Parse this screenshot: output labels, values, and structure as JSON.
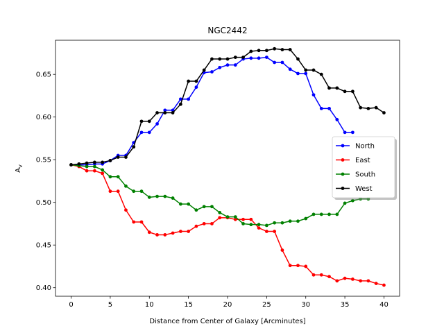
{
  "chart_data": {
    "type": "line",
    "title": "NGC2442",
    "xlabel": "Distance from Center of Galaxy [Arcminutes]",
    "ylabel": "A",
    "ylabel_sub": "V",
    "xlim": [
      -2,
      42
    ],
    "ylim": [
      0.39,
      0.69
    ],
    "xticks": [
      0,
      5,
      10,
      15,
      20,
      25,
      30,
      35,
      40
    ],
    "yticks": [
      0.4,
      0.45,
      0.5,
      0.55,
      0.6,
      0.65
    ],
    "legend_position": "center-right",
    "series": [
      {
        "name": "North",
        "color": "#0000ff",
        "x": [
          0,
          1,
          2,
          3,
          4,
          5,
          6,
          7,
          8,
          9,
          10,
          11,
          12,
          13,
          14,
          15,
          16,
          17,
          18,
          19,
          20,
          21,
          22,
          23,
          24,
          25,
          26,
          27,
          28,
          29,
          30,
          31,
          32,
          33,
          34,
          35,
          36
        ],
        "y": [
          0.544,
          0.544,
          0.544,
          0.545,
          0.545,
          0.549,
          0.555,
          0.555,
          0.57,
          0.582,
          0.582,
          0.592,
          0.608,
          0.608,
          0.621,
          0.621,
          0.635,
          0.652,
          0.653,
          0.658,
          0.661,
          0.661,
          0.668,
          0.669,
          0.669,
          0.67,
          0.664,
          0.664,
          0.656,
          0.651,
          0.651,
          0.626,
          0.61,
          0.61,
          0.597,
          0.582,
          0.582
        ]
      },
      {
        "name": "East",
        "color": "#ff0000",
        "x": [
          0,
          1,
          2,
          3,
          4,
          5,
          6,
          7,
          8,
          9,
          10,
          11,
          12,
          13,
          14,
          15,
          16,
          17,
          18,
          19,
          20,
          21,
          22,
          23,
          24,
          25,
          26,
          27,
          28,
          29,
          30,
          31,
          32,
          33,
          34,
          35,
          36,
          37,
          38,
          39,
          40
        ],
        "y": [
          0.544,
          0.542,
          0.537,
          0.537,
          0.534,
          0.513,
          0.513,
          0.491,
          0.477,
          0.477,
          0.465,
          0.462,
          0.462,
          0.464,
          0.466,
          0.466,
          0.472,
          0.475,
          0.475,
          0.482,
          0.482,
          0.48,
          0.48,
          0.48,
          0.47,
          0.466,
          0.466,
          0.444,
          0.426,
          0.426,
          0.425,
          0.415,
          0.415,
          0.413,
          0.408,
          0.411,
          0.41,
          0.408,
          0.408,
          0.405,
          0.403
        ]
      },
      {
        "name": "South",
        "color": "#008000",
        "x": [
          0,
          1,
          2,
          3,
          4,
          5,
          6,
          7,
          8,
          9,
          10,
          11,
          12,
          13,
          14,
          15,
          16,
          17,
          18,
          19,
          20,
          21,
          22,
          23,
          24,
          25,
          26,
          27,
          28,
          29,
          30,
          31,
          32,
          33,
          34,
          35,
          36,
          37,
          38
        ],
        "y": [
          0.544,
          0.543,
          0.542,
          0.542,
          0.538,
          0.53,
          0.53,
          0.519,
          0.513,
          0.513,
          0.506,
          0.507,
          0.507,
          0.505,
          0.498,
          0.498,
          0.491,
          0.495,
          0.495,
          0.488,
          0.483,
          0.483,
          0.475,
          0.474,
          0.474,
          0.473,
          0.476,
          0.476,
          0.478,
          0.478,
          0.481,
          0.486,
          0.486,
          0.486,
          0.486,
          0.499,
          0.502,
          0.504,
          0.504
        ]
      },
      {
        "name": "West",
        "color": "#000000",
        "x": [
          0,
          1,
          2,
          3,
          4,
          5,
          6,
          7,
          8,
          9,
          10,
          11,
          12,
          13,
          14,
          15,
          16,
          17,
          18,
          19,
          20,
          21,
          22,
          23,
          24,
          25,
          26,
          27,
          28,
          29,
          30,
          31,
          32,
          33,
          34,
          35,
          36,
          37,
          38,
          39,
          40
        ],
        "y": [
          0.544,
          0.545,
          0.546,
          0.547,
          0.547,
          0.549,
          0.553,
          0.553,
          0.565,
          0.595,
          0.595,
          0.605,
          0.605,
          0.605,
          0.615,
          0.642,
          0.642,
          0.655,
          0.668,
          0.668,
          0.668,
          0.67,
          0.67,
          0.677,
          0.678,
          0.678,
          0.68,
          0.679,
          0.679,
          0.668,
          0.655,
          0.655,
          0.65,
          0.634,
          0.634,
          0.63,
          0.63,
          0.611,
          0.61,
          0.611,
          0.605
        ]
      }
    ]
  }
}
